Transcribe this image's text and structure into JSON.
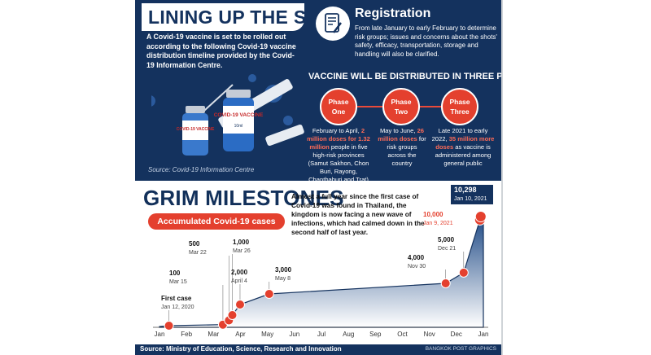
{
  "top": {
    "title": "LINING UP THE SHOTS",
    "intro": "A Covid-19 vaccine is set to be rolled out according to the following Covid-19 vaccine distribution timeline provided by the Covid-19 Information Centre.",
    "registration": {
      "title": "Registration",
      "text": "From late January to early February to determine risk groups; issues and concerns about the shots' safety, efficacy, transportation, storage and handling will also be clarified.",
      "icon": "document-pen-icon"
    },
    "heading": "VACCINE WILL BE DISTRIBUTED IN THREE PHASES",
    "phases": [
      {
        "l1": "Phase",
        "l2": "One",
        "d1": "February to April, ",
        "hl": "2 million doses for 1.32 million",
        "d2": " people in five high-risk provinces (Samut Sakhon, Chon Buri, Rayong, Chanthaburi and Trat)"
      },
      {
        "l1": "Phase",
        "l2": "Two",
        "d1": "May to June, ",
        "hl": "26 million doses",
        "d2": " for risk groups across the country"
      },
      {
        "l1": "Phase",
        "l2": "Three",
        "d1": "Late 2021 to early 2022, ",
        "hl": "35 million more doses",
        "d2": " as vaccine is administered among general public"
      }
    ],
    "source": "Source: Covid-19 Information Centre",
    "vial_label": "COVID-19 VACCINE",
    "vial_label2": "COVID-19 VACCINE",
    "vial_sub": "10ml"
  },
  "bottom": {
    "title": "GRIM MILESTONES",
    "text": "Almost a full year since the first case of Covid-19 was found in Thailand, the kingdom is now facing a new wave of infections, which had calmed down in the second half of last year.",
    "pill": "Accumulated Covid-19 cases",
    "source": "Source: Ministry of Education, Science, Research and Innovation",
    "credit": "BANGKOK POST GRAPHICS"
  },
  "chart_data": {
    "type": "area",
    "months": [
      "Jan",
      "Feb",
      "Mar",
      "Apr",
      "May",
      "Jun",
      "Jul",
      "Aug",
      "Sep",
      "Oct",
      "Nov",
      "Dec",
      "Jan"
    ],
    "milestones": [
      {
        "value": "First case",
        "date": "Jan 12, 2020",
        "day": 11,
        "cases": 1
      },
      {
        "value": "100",
        "date": "Mar 15",
        "day": 74,
        "cases": 100
      },
      {
        "value": "500",
        "date": "Mar 22",
        "day": 81,
        "cases": 500
      },
      {
        "value": "1,000",
        "date": "Mar 26",
        "day": 85,
        "cases": 1000
      },
      {
        "value": "2,000",
        "date": "April 4",
        "day": 94,
        "cases": 2000
      },
      {
        "value": "3,000",
        "date": "May 8",
        "day": 128,
        "cases": 3000
      },
      {
        "value": "4,000",
        "date": "Nov 30",
        "day": 334,
        "cases": 4000
      },
      {
        "value": "5,000",
        "date": "Dec 21",
        "day": 355,
        "cases": 5000
      },
      {
        "value": "10,000",
        "date": "Jan 9, 2021",
        "day": 374,
        "cases": 10000
      },
      {
        "value": "10,298",
        "date": "Jan 10, 2021",
        "day": 375,
        "cases": 10298
      }
    ],
    "colors": {
      "fill": "#1f4a86",
      "accent": "#e4402e",
      "navy": "#14325e"
    }
  }
}
